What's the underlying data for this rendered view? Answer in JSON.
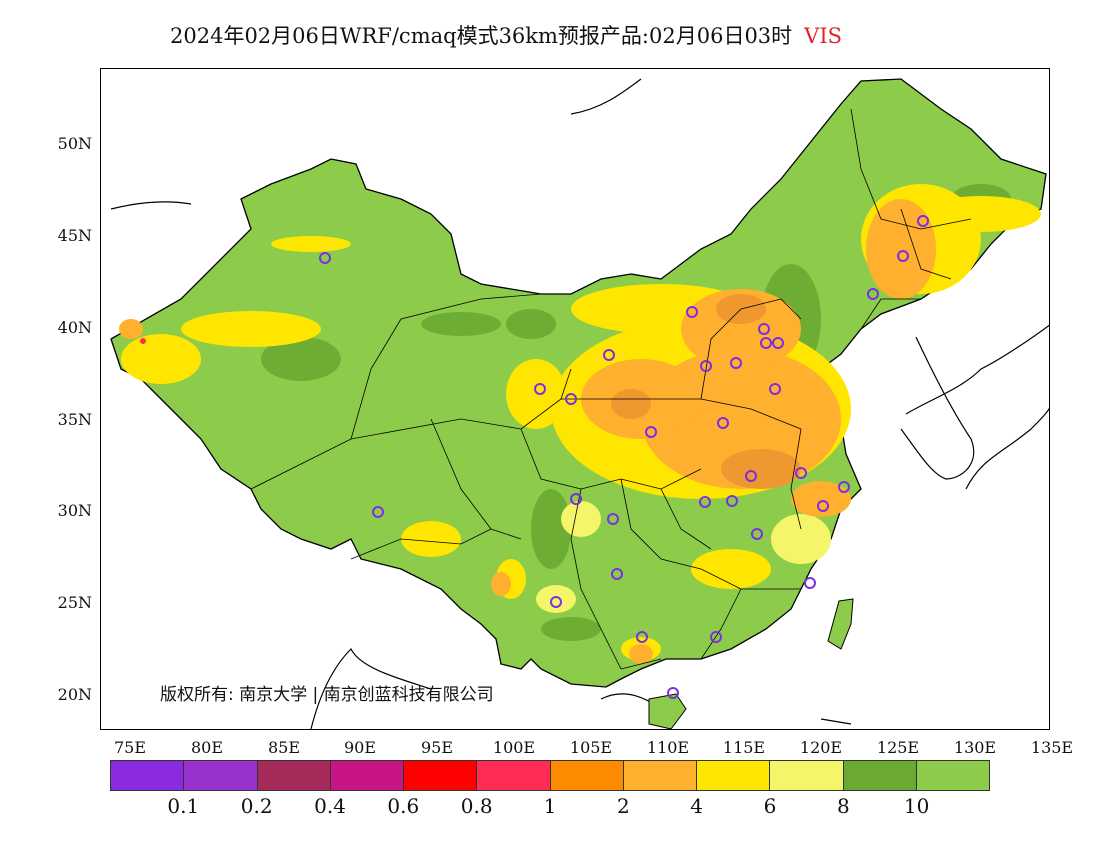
{
  "title": {
    "main": "2024年02月06日WRF/cmaq模式36km预报产品:02月06日03时",
    "variable": "VIS"
  },
  "map": {
    "lat_labels": [
      "50N",
      "45N",
      "40N",
      "35N",
      "30N",
      "25N",
      "20N"
    ],
    "lon_labels": [
      "75E",
      "80E",
      "85E",
      "90E",
      "95E",
      "100E",
      "105E",
      "110E",
      "115E",
      "120E",
      "125E",
      "130E",
      "135E"
    ]
  },
  "copyright": "版权所有: 南京大学 | 南京创蓝科技有限公司",
  "legend": {
    "colors": [
      "#8a2be2",
      "#9932cc",
      "#a52a5a",
      "#c71585",
      "#ff0000",
      "#ff2d55",
      "#ff8c00",
      "#ffb02e",
      "#ffe600",
      "#f5f56a",
      "#6aaa32",
      "#8ccc4a"
    ],
    "labels": [
      "0.1",
      "0.2",
      "0.4",
      "0.6",
      "0.8",
      "1",
      "2",
      "4",
      "6",
      "8",
      "10"
    ]
  },
  "colors": {
    "background_land": "#8ccc4a",
    "dark_green": "#6aaa32",
    "yellow": "#ffe600",
    "light_yellow": "#f5f56a",
    "orange": "#ffb02e",
    "dark_orange": "#f09830",
    "station_marker": "#7b2fe0"
  }
}
